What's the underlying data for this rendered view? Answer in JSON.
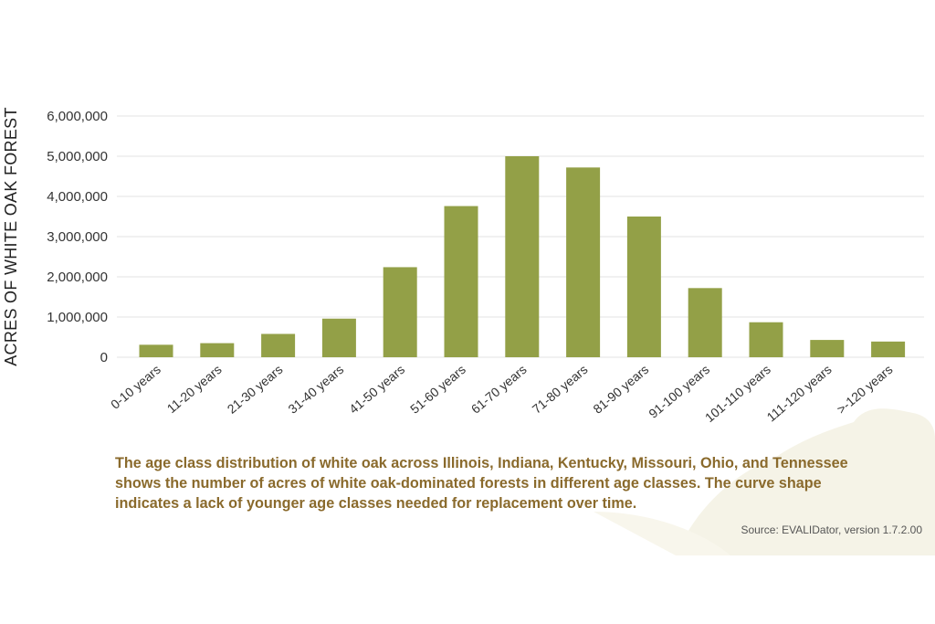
{
  "chart_data": {
    "type": "bar",
    "title": "",
    "xlabel": "",
    "ylabel": "ACRES OF WHITE OAK FOREST",
    "categories": [
      "0-10 years",
      "11-20 years",
      "21-30 years",
      "31-40 years",
      "41-50 years",
      "51-60 years",
      "61-70 years",
      "71-80 years",
      "81-90 years",
      "91-100 years",
      "101-110 years",
      "111-120 years",
      ">-120 years"
    ],
    "values": [
      310000,
      350000,
      580000,
      960000,
      2240000,
      3760000,
      5000000,
      4720000,
      3500000,
      1720000,
      870000,
      430000,
      390000
    ],
    "ylim": [
      0,
      6000000
    ],
    "yticks": [
      0,
      1000000,
      2000000,
      3000000,
      4000000,
      5000000,
      6000000
    ],
    "ytick_labels": [
      "0",
      "1,000,000",
      "2,000,000",
      "3,000,000",
      "4,000,000",
      "5,000,000",
      "6,000,000"
    ],
    "grid": "horizontal",
    "legend": "none",
    "bar_color": "#93a047",
    "grid_color": "#e3e3e3"
  },
  "caption": "The age class distribution of white oak across Illinois, Indiana, Kentucky, Missouri, Ohio, and Tennessee shows the number of acres of white oak-dominated forests in different age classes. The curve shape indicates a lack of younger age classes needed for replacement over time.",
  "source": "Source: EVALIDator, version 1.7.2.00",
  "colors": {
    "caption": "#8a6a2c",
    "leaf_background": "#f5f3e7"
  }
}
